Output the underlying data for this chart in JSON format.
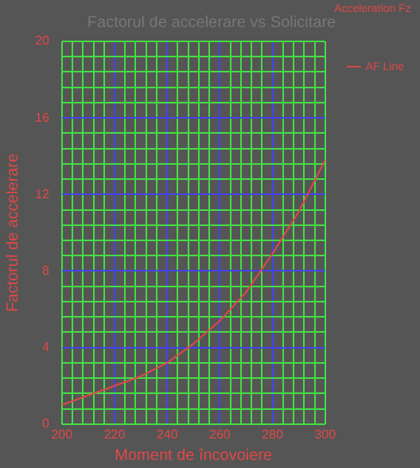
{
  "chart_data": {
    "type": "line",
    "title": "Factorul de accelerare vs Solicitare",
    "xlabel": "Moment de încovoiere",
    "ylabel": "Factorul de accelerare",
    "legend_title": "Acceleration Fz",
    "series": [
      {
        "name": "AF Line",
        "color": "#e04848",
        "x": [
          200,
          210,
          220,
          230,
          240,
          250,
          260,
          270,
          280,
          290,
          300
        ],
        "values": [
          1.0,
          1.5,
          2.0,
          2.5,
          3.2,
          4.2,
          5.4,
          6.9,
          8.9,
          11.1,
          13.8
        ]
      }
    ],
    "xlim": [
      200,
      300
    ],
    "xticks": [
      200,
      {
        "value": 204,
        "label": null
      },
      {
        "value": 208,
        "label": null
      },
      {
        "value": 212,
        "label": null
      },
      {
        "value": 216,
        "label": null
      },
      220,
      {
        "value": 224,
        "label": null
      },
      {
        "value": 228,
        "label": null
      },
      {
        "value": 232,
        "label": null
      },
      {
        "value": 236,
        "label": null
      },
      240,
      {
        "value": 244,
        "label": null
      },
      {
        "value": 248,
        "label": null
      },
      {
        "value": 252,
        "label": null
      },
      {
        "value": 256,
        "label": null
      },
      260,
      {
        "value": 264,
        "label": null
      },
      {
        "value": 268,
        "label": null
      },
      {
        "value": 272,
        "label": null
      },
      {
        "value": 276,
        "label": null
      },
      280,
      {
        "value": 284,
        "label": null
      },
      {
        "value": 288,
        "label": null
      },
      {
        "value": 292,
        "label": null
      },
      {
        "value": 296,
        "label": null
      },
      300
    ],
    "ylim": [
      0,
      20
    ],
    "yticks": [
      0,
      {
        "value": 0.8,
        "label": null
      },
      {
        "value": 1.6,
        "label": null
      },
      {
        "value": 2.4,
        "label": null
      },
      {
        "value": 3.2,
        "label": null
      },
      4,
      {
        "value": 4.8,
        "label": null
      },
      {
        "value": 5.6,
        "label": null
      },
      {
        "value": 6.4,
        "label": null
      },
      {
        "value": 7.2,
        "label": null
      },
      8,
      {
        "value": 8.8,
        "label": null
      },
      {
        "value": 9.6,
        "label": null
      },
      {
        "value": 10.4,
        "label": null
      },
      {
        "value": 11.2,
        "label": null
      },
      12,
      {
        "value": 12.8,
        "label": null
      },
      {
        "value": 13.6,
        "label": null
      },
      {
        "value": 14.4,
        "label": null
      },
      {
        "value": 15.2,
        "label": null
      },
      16,
      {
        "value": 16.8,
        "label": null
      },
      {
        "value": 17.6,
        "label": null
      },
      {
        "value": 18.4,
        "label": null
      },
      {
        "value": 19.2,
        "label": null
      },
      20
    ],
    "grid": true,
    "legend": "top right",
    "marker": "none",
    "line_style": "solid"
  }
}
